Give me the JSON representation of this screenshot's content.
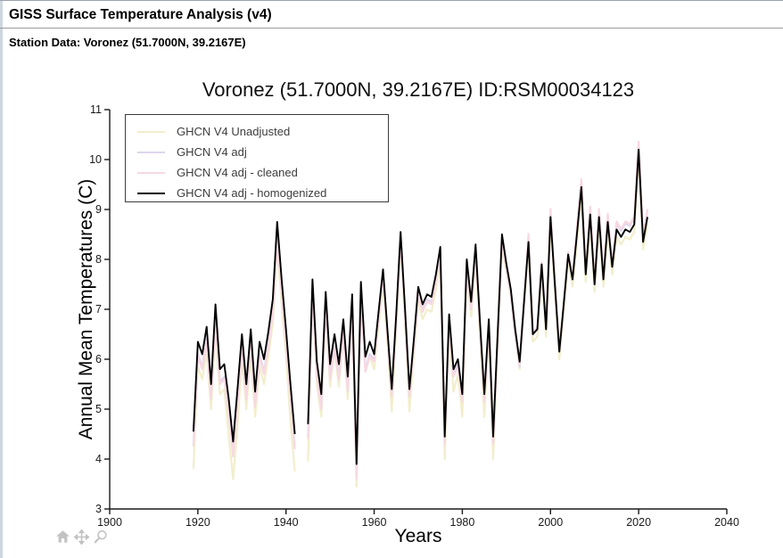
{
  "header": {
    "title": "GISS Surface Temperature Analysis (v4)",
    "station": "Station Data: Voronez (51.7000N, 39.2167E)"
  },
  "controls": {
    "icons": [
      "home-icon",
      "pan-icon",
      "zoom-icon"
    ],
    "icon_color": "#c2c2c2"
  },
  "chart_data": {
    "type": "line",
    "title": "Voronez (51.7000N, 39.2167E) ID:RSM00034123",
    "xlabel": "Years",
    "ylabel": "Annual Mean Temperatures (C)",
    "xlim": [
      1900,
      2040
    ],
    "ylim": [
      3,
      11
    ],
    "x_ticks": [
      1900,
      1920,
      1940,
      1960,
      1980,
      2000,
      2020,
      2040
    ],
    "y_ticks": [
      3,
      4,
      5,
      6,
      7,
      8,
      9,
      10,
      11
    ],
    "grid": false,
    "legend_position": "top-left",
    "axis_color": "#1a1a1a",
    "years": [
      1919,
      1920,
      1921,
      1922,
      1923,
      1924,
      1925,
      1926,
      1927,
      1928,
      1929,
      1930,
      1931,
      1932,
      1933,
      1934,
      1935,
      1936,
      1937,
      1938,
      1939,
      1940,
      1941,
      1942,
      1943,
      1944,
      1945,
      1946,
      1947,
      1948,
      1949,
      1950,
      1951,
      1952,
      1953,
      1954,
      1955,
      1956,
      1957,
      1958,
      1959,
      1960,
      1961,
      1962,
      1963,
      1964,
      1965,
      1966,
      1967,
      1968,
      1969,
      1970,
      1971,
      1972,
      1973,
      1974,
      1975,
      1976,
      1977,
      1978,
      1979,
      1980,
      1981,
      1982,
      1983,
      1984,
      1985,
      1986,
      1987,
      1988,
      1989,
      1990,
      1991,
      1992,
      1993,
      1994,
      1995,
      1996,
      1997,
      1998,
      1999,
      2000,
      2001,
      2002,
      2003,
      2004,
      2005,
      2006,
      2007,
      2008,
      2009,
      2010,
      2011,
      2012,
      2013,
      2014,
      2015,
      2016,
      2017,
      2018,
      2019,
      2020,
      2021,
      2022
    ],
    "series": [
      {
        "name": "GHCN V4 Unadjusted",
        "color": "#f2eecd",
        "width": 2.2,
        "values": [
          3.8,
          5.85,
          5.6,
          6.15,
          5.0,
          6.6,
          5.3,
          5.4,
          4.45,
          3.6,
          4.65,
          6.0,
          5.0,
          6.1,
          4.85,
          5.85,
          5.5,
          6.05,
          6.7,
          8.25,
          7.1,
          6.1,
          4.75,
          3.75,
          null,
          null,
          3.95,
          7.3,
          5.5,
          4.85,
          7.05,
          5.45,
          6.2,
          5.45,
          6.5,
          5.2,
          7.0,
          3.45,
          7.25,
          5.75,
          6.05,
          5.8,
          6.65,
          7.5,
          6.3,
          4.95,
          6.6,
          8.25,
          6.7,
          4.95,
          6.1,
          7.15,
          6.8,
          7.0,
          6.95,
          7.4,
          7.95,
          4.0,
          6.6,
          5.35,
          5.7,
          4.85,
          7.7,
          6.85,
          8.0,
          6.45,
          4.85,
          6.5,
          4.0,
          6.2,
          8.2,
          7.75,
          7.25,
          6.45,
          5.8,
          7.0,
          8.2,
          6.35,
          6.45,
          7.75,
          6.45,
          8.7,
          7.35,
          6.0,
          6.95,
          7.95,
          7.45,
          8.35,
          9.3,
          7.55,
          8.75,
          7.35,
          8.7,
          7.45,
          8.6,
          7.7,
          8.45,
          8.3,
          8.45,
          8.4,
          8.55,
          10.05,
          8.2,
          8.7
        ]
      },
      {
        "name": "GHCN V4 adj",
        "color": "#ded5ec",
        "width": 2.2,
        "values": [
          4.3,
          6.1,
          5.85,
          6.4,
          5.25,
          6.85,
          5.55,
          5.65,
          4.95,
          4.1,
          5.15,
          6.25,
          5.25,
          6.35,
          5.1,
          6.1,
          5.75,
          6.3,
          6.95,
          8.5,
          7.35,
          6.35,
          5.25,
          4.25,
          null,
          null,
          4.45,
          7.35,
          5.7,
          5.05,
          7.1,
          5.65,
          6.25,
          5.65,
          6.55,
          5.4,
          7.05,
          3.65,
          7.3,
          5.8,
          6.1,
          6.0,
          6.85,
          7.7,
          6.5,
          5.3,
          6.8,
          8.45,
          6.9,
          5.3,
          6.3,
          7.35,
          7.0,
          7.2,
          7.15,
          7.6,
          8.15,
          4.35,
          6.8,
          5.7,
          5.9,
          5.2,
          7.9,
          7.05,
          8.2,
          6.65,
          5.2,
          6.7,
          4.35,
          6.4,
          8.4,
          7.8,
          7.3,
          6.5,
          5.85,
          7.05,
          8.47,
          6.5,
          6.6,
          7.9,
          6.6,
          8.97,
          7.5,
          6.15,
          7.1,
          8.1,
          7.6,
          8.62,
          9.57,
          7.7,
          9.02,
          7.5,
          8.97,
          7.6,
          8.87,
          7.85,
          8.72,
          8.57,
          8.72,
          8.67,
          8.82,
          10.32,
          8.47,
          8.97
        ]
      },
      {
        "name": "GHCN V4 adj - cleaned",
        "color": "#f7d9e3",
        "width": 2.2,
        "values": [
          4.25,
          6.05,
          5.8,
          6.35,
          5.2,
          6.8,
          5.5,
          5.6,
          4.9,
          4.05,
          5.1,
          6.2,
          5.2,
          6.3,
          5.05,
          6.05,
          5.7,
          6.25,
          6.9,
          8.45,
          7.3,
          6.3,
          5.2,
          4.2,
          null,
          null,
          4.4,
          7.3,
          5.65,
          5.0,
          7.05,
          5.6,
          6.2,
          5.6,
          6.5,
          5.35,
          7.0,
          3.6,
          7.25,
          5.75,
          6.05,
          5.95,
          6.8,
          7.65,
          6.45,
          5.25,
          6.75,
          8.4,
          6.85,
          5.25,
          6.25,
          7.3,
          6.95,
          7.15,
          7.1,
          7.55,
          8.1,
          4.3,
          6.75,
          5.65,
          5.85,
          5.15,
          7.85,
          7.0,
          8.15,
          6.6,
          5.15,
          6.65,
          4.3,
          6.35,
          8.35,
          7.84,
          7.34,
          6.54,
          5.89,
          7.09,
          8.51,
          6.54,
          6.64,
          7.94,
          6.64,
          9.01,
          7.54,
          6.19,
          7.14,
          8.14,
          7.64,
          8.66,
          9.61,
          7.74,
          9.06,
          7.54,
          9.01,
          7.64,
          8.91,
          7.89,
          8.76,
          8.61,
          8.76,
          8.71,
          8.86,
          10.36,
          8.51,
          9.01
        ]
      },
      {
        "name": "GHCN V4 adj - homogenized",
        "color": "#000000",
        "width": 1.9,
        "values": [
          4.55,
          6.35,
          6.1,
          6.65,
          5.5,
          7.1,
          5.8,
          5.9,
          5.2,
          4.35,
          5.4,
          6.5,
          5.5,
          6.6,
          5.35,
          6.35,
          6.0,
          6.55,
          7.2,
          8.75,
          7.6,
          6.6,
          5.5,
          4.5,
          null,
          null,
          4.7,
          7.6,
          5.95,
          5.3,
          7.35,
          5.9,
          6.5,
          5.9,
          6.8,
          5.65,
          7.3,
          3.9,
          7.55,
          6.05,
          6.35,
          6.1,
          6.95,
          7.8,
          6.6,
          5.4,
          6.9,
          8.55,
          7.0,
          5.4,
          6.4,
          7.45,
          7.1,
          7.3,
          7.25,
          7.7,
          8.25,
          4.45,
          6.9,
          5.8,
          6.0,
          5.3,
          8.0,
          7.15,
          8.3,
          6.75,
          5.3,
          6.8,
          4.45,
          6.5,
          8.5,
          7.9,
          7.4,
          6.6,
          5.95,
          7.15,
          8.35,
          6.5,
          6.6,
          7.9,
          6.6,
          8.85,
          7.5,
          6.15,
          7.1,
          8.1,
          7.6,
          8.5,
          9.45,
          7.7,
          8.9,
          7.5,
          8.85,
          7.6,
          8.75,
          7.85,
          8.6,
          8.45,
          8.6,
          8.55,
          8.7,
          10.2,
          8.35,
          8.85
        ]
      }
    ]
  }
}
